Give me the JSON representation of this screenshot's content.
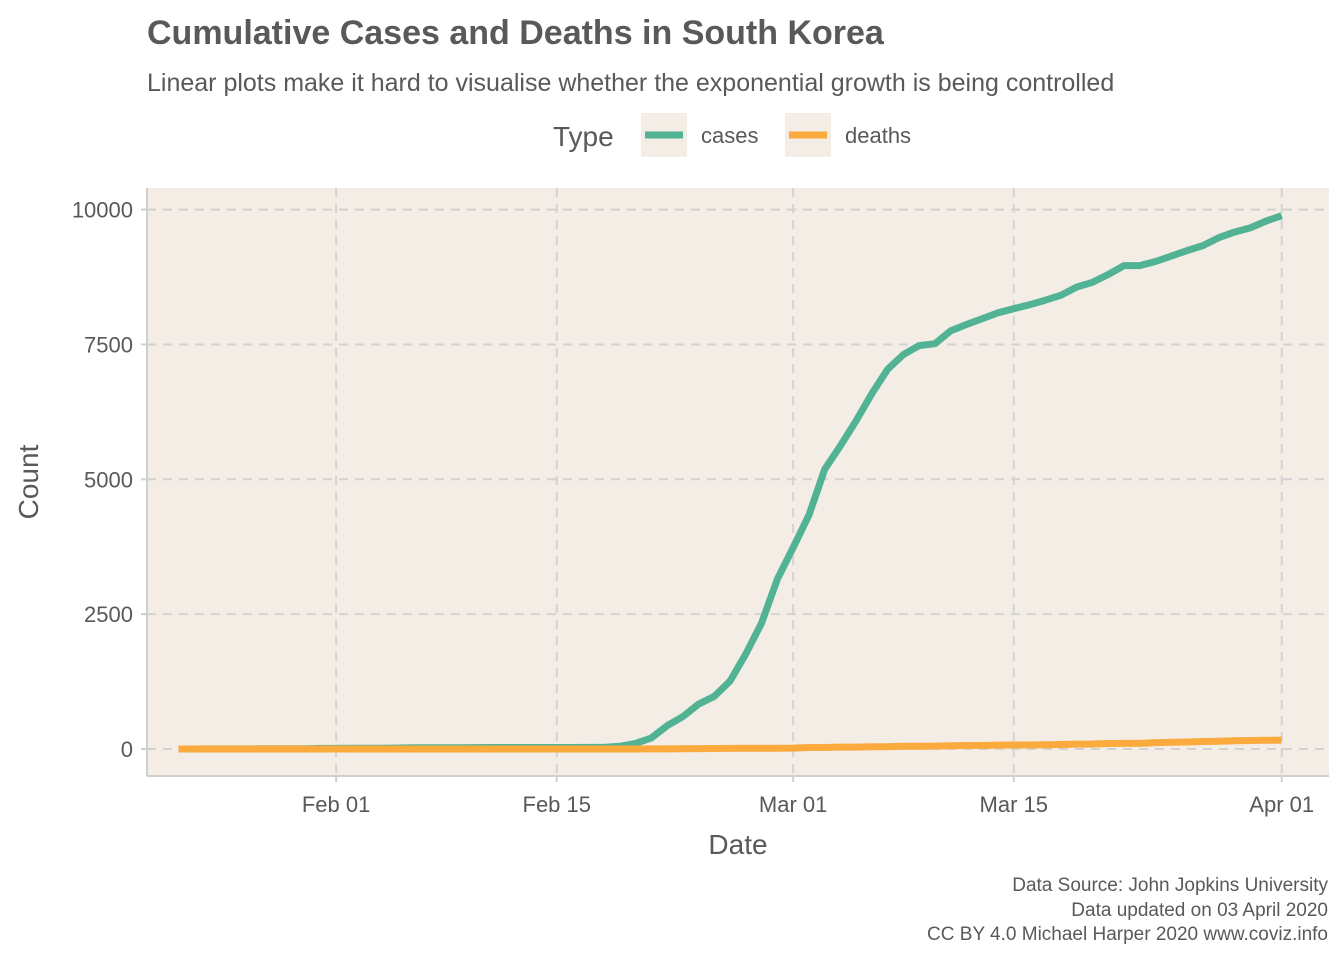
{
  "chart_data": {
    "type": "line",
    "title": "Cumulative Cases and Deaths in South Korea",
    "subtitle": "Linear plots make it hard to visualise whether the exponential growth is being controlled",
    "xlabel": "Date",
    "ylabel": "Count",
    "legend": {
      "title": "Type",
      "position": "top"
    },
    "x_ticks": [
      "Feb 01",
      "Feb 15",
      "Mar 01",
      "Mar 15",
      "Apr 01"
    ],
    "x_tick_dates": [
      "2020-02-01",
      "2020-02-15",
      "2020-03-01",
      "2020-03-15",
      "2020-04-01"
    ],
    "y_ticks": [
      0,
      2500,
      5000,
      7500,
      10000
    ],
    "xlim": [
      "2020-01-20",
      "2020-04-04"
    ],
    "ylim": [
      -500,
      10400
    ],
    "grid": true,
    "colors": {
      "cases": "#52b394",
      "deaths": "#fbaa3e",
      "panel": "#f3ede6"
    },
    "x": [
      "2020-01-22",
      "2020-01-23",
      "2020-01-24",
      "2020-01-25",
      "2020-01-26",
      "2020-01-27",
      "2020-01-28",
      "2020-01-29",
      "2020-01-30",
      "2020-01-31",
      "2020-02-01",
      "2020-02-02",
      "2020-02-03",
      "2020-02-04",
      "2020-02-05",
      "2020-02-06",
      "2020-02-07",
      "2020-02-08",
      "2020-02-09",
      "2020-02-10",
      "2020-02-11",
      "2020-02-12",
      "2020-02-13",
      "2020-02-14",
      "2020-02-15",
      "2020-02-16",
      "2020-02-17",
      "2020-02-18",
      "2020-02-19",
      "2020-02-20",
      "2020-02-21",
      "2020-02-22",
      "2020-02-23",
      "2020-02-24",
      "2020-02-25",
      "2020-02-26",
      "2020-02-27",
      "2020-02-28",
      "2020-02-29",
      "2020-03-01",
      "2020-03-02",
      "2020-03-03",
      "2020-03-04",
      "2020-03-05",
      "2020-03-06",
      "2020-03-07",
      "2020-03-08",
      "2020-03-09",
      "2020-03-10",
      "2020-03-11",
      "2020-03-12",
      "2020-03-13",
      "2020-03-14",
      "2020-03-15",
      "2020-03-16",
      "2020-03-17",
      "2020-03-18",
      "2020-03-19",
      "2020-03-20",
      "2020-03-21",
      "2020-03-22",
      "2020-03-23",
      "2020-03-24",
      "2020-03-25",
      "2020-03-26",
      "2020-03-27",
      "2020-03-28",
      "2020-03-29",
      "2020-03-30",
      "2020-03-31",
      "2020-04-01"
    ],
    "series": [
      {
        "name": "cases",
        "values": [
          1,
          1,
          2,
          2,
          3,
          4,
          4,
          4,
          4,
          11,
          12,
          15,
          15,
          16,
          19,
          23,
          24,
          24,
          25,
          27,
          28,
          28,
          28,
          28,
          28,
          29,
          30,
          31,
          51,
          104,
          204,
          433,
          602,
          833,
          977,
          1261,
          1766,
          2337,
          3150,
          3736,
          4335,
          5186,
          5621,
          6088,
          6593,
          7041,
          7314,
          7478,
          7513,
          7755,
          7869,
          7979,
          8086,
          8162,
          8236,
          8320,
          8413,
          8565,
          8652,
          8799,
          8961,
          8961,
          9037,
          9137,
          9241,
          9332,
          9478,
          9583,
          9661,
          9786,
          9887
        ]
      },
      {
        "name": "deaths",
        "values": [
          0,
          0,
          0,
          0,
          0,
          0,
          0,
          0,
          0,
          0,
          0,
          0,
          0,
          0,
          0,
          0,
          0,
          0,
          0,
          0,
          0,
          0,
          0,
          0,
          0,
          0,
          0,
          0,
          0,
          1,
          2,
          2,
          6,
          8,
          10,
          12,
          13,
          13,
          16,
          17,
          28,
          28,
          35,
          35,
          42,
          44,
          50,
          53,
          54,
          60,
          66,
          66,
          72,
          75,
          75,
          81,
          84,
          91,
          94,
          102,
          104,
          104,
          120,
          126,
          131,
          139,
          144,
          152,
          158,
          162,
          165
        ]
      }
    ]
  },
  "caption": {
    "lines": [
      "Data Source: John Jopkins University",
      "Data updated on 03 April 2020",
      "CC BY 4.0 Michael Harper 2020 www.coviz.info"
    ]
  }
}
